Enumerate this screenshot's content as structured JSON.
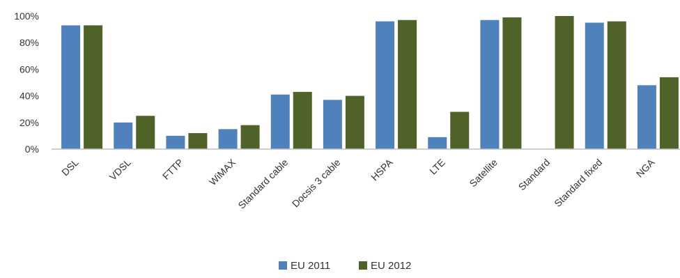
{
  "chart_data": {
    "type": "bar",
    "categories": [
      "DSL",
      "VDSL",
      "FTTP",
      "WiMAX",
      "Standard cable",
      "Docsis 3 cable",
      "HSPA",
      "LTE",
      "Satellite",
      "Standard",
      "Standard fixed",
      "NGA"
    ],
    "series": [
      {
        "name": "EU 2011",
        "color": "#4f81bd",
        "values": [
          93,
          20,
          10,
          15,
          41,
          37,
          96,
          9,
          97,
          0,
          95,
          48
        ]
      },
      {
        "name": "EU 2012",
        "color": "#4f6228",
        "values": [
          93,
          25,
          12,
          18,
          43,
          40,
          97,
          28,
          99,
          100,
          96,
          54
        ]
      }
    ],
    "ylim": [
      0,
      100
    ],
    "yticks": [
      "0%",
      "20%",
      "40%",
      "60%",
      "80%",
      "100%"
    ],
    "ytick_values": [
      0,
      20,
      40,
      60,
      80,
      100
    ],
    "grid": false,
    "legend": "bottom",
    "title": "",
    "xlabel": "",
    "ylabel": ""
  }
}
